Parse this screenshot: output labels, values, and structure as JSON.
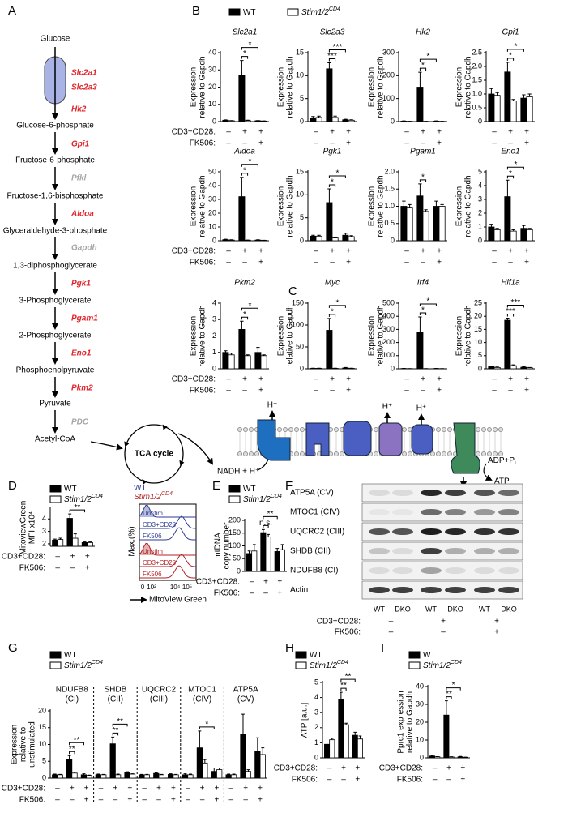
{
  "panels": [
    "A",
    "B",
    "C",
    "D",
    "E",
    "F",
    "G",
    "H",
    "I"
  ],
  "legend": {
    "series": [
      {
        "name": "WT",
        "color": "#000000"
      },
      {
        "name": "Stim1/2",
        "sup": "CD4",
        "color": "#ffffff"
      }
    ]
  },
  "conditions": {
    "rows": [
      {
        "label": "CD3+CD28:",
        "signs": [
          "–",
          "+",
          "+"
        ]
      },
      {
        "label": "FK506:",
        "signs": [
          "–",
          "–",
          "+"
        ]
      }
    ]
  },
  "pathway": {
    "metabolites": [
      "Glucose",
      "Glucose-6-phosphate",
      "Fructose-6-phosphate",
      "Fructose-1,6-bisphosphate",
      "Glyceraldehyde-3-phosphate",
      "1,3-diphosphoglycerate",
      "3-Phosphoglycerate",
      "2-Phosphoglycerate",
      "Phosphoenolpyruvate",
      "Pyruvate",
      "Acetyl-CoA"
    ],
    "enzymes": [
      {
        "name": "Slc2a1",
        "color": "#e0262c"
      },
      {
        "name": "Slc2a3",
        "color": "#e0262c"
      },
      {
        "name": "Hk2",
        "color": "#e0262c"
      },
      {
        "name": "Gpi1",
        "color": "#e0262c"
      },
      {
        "name": "Pfkl",
        "color": "#a6a6a6"
      },
      {
        "name": "Aldoa",
        "color": "#e0262c"
      },
      {
        "name": "Gapdh",
        "color": "#a6a6a6"
      },
      {
        "name": "Pgk1",
        "color": "#e0262c"
      },
      {
        "name": "Pgam1",
        "color": "#e0262c"
      },
      {
        "name": "Eno1",
        "color": "#e0262c"
      },
      {
        "name": "Pkm2",
        "color": "#e0262c"
      },
      {
        "name": "PDC",
        "color": "#a6a6a6"
      }
    ]
  },
  "mito": {
    "tca": "TCA cycle",
    "nadh": "NADH + H⁺",
    "proton": "H⁺",
    "adp": "ADP+P",
    "adp_sub": "i",
    "atp": "ATP"
  },
  "flow": {
    "legend": [
      {
        "name": "WT",
        "color": "#2e3b96"
      },
      {
        "name": "Stim1/2",
        "sup": "CD4",
        "color": "#b32025"
      }
    ],
    "rows": [
      "Unstim",
      "CD3+CD28",
      "FK506"
    ],
    "ylabel": "Max.(%)",
    "xticks": [
      "0",
      "10²",
      "10⁴",
      "10⁵"
    ],
    "xlabel": "MitoView Green"
  },
  "blot": {
    "proteins": [
      "ATP5A (CV)",
      "MTOC1 (CIV)",
      "UQCRC2 (CIII)",
      "SHDB (CII)",
      "NDUFB8 (CI)",
      "Actin"
    ],
    "lanes": [
      "WT",
      "DKO",
      "WT",
      "DKO",
      "WT",
      "DKO"
    ]
  },
  "chart_data": [
    {
      "type": "bar",
      "title": "Slc2a1",
      "ylabel": [
        "Expression",
        "relative to Gapdh"
      ],
      "ylim": [
        0,
        40
      ],
      "yticks": [
        0,
        10,
        20,
        30,
        40
      ],
      "series": [
        {
          "values": [
            0.8,
            27,
            0.5
          ],
          "errors": [
            0.2,
            8.5,
            0.1
          ]
        },
        {
          "values": [
            0.5,
            0.6,
            0.3
          ],
          "errors": [
            0.1,
            0.2,
            0.1
          ]
        }
      ],
      "annotations": [
        "*",
        "*"
      ]
    },
    {
      "type": "bar",
      "title": "Slc2a3",
      "ylabel": [
        "Expression",
        "relative to Gapdh"
      ],
      "ylim": [
        0,
        15
      ],
      "yticks": [
        0,
        5,
        10,
        15
      ],
      "series": [
        {
          "values": [
            0.7,
            11.5,
            0.4
          ],
          "errors": [
            0.4,
            1.3,
            0.1
          ]
        },
        {
          "values": [
            0.9,
            0.9,
            0.3
          ],
          "errors": [
            0.3,
            0.3,
            0.1
          ]
        }
      ],
      "annotations": [
        "***",
        "***"
      ]
    },
    {
      "type": "bar",
      "title": "Hk2",
      "ylabel": [
        "Expression",
        "relative to Gapdh"
      ],
      "ylim": [
        0,
        300
      ],
      "yticks": [
        0,
        100,
        200,
        300
      ],
      "series": [
        {
          "values": [
            2,
            150,
            2
          ],
          "errors": [
            1,
            65,
            1
          ]
        },
        {
          "values": [
            1,
            1,
            1
          ],
          "errors": [
            0.5,
            0.5,
            0.5
          ]
        }
      ],
      "annotations": [
        "*",
        "*"
      ]
    },
    {
      "type": "bar",
      "title": "Gpi1",
      "ylabel": [
        "Expression",
        "relative to Gapdh"
      ],
      "ylim": [
        0,
        2.5
      ],
      "yticks": [
        0,
        0.5,
        {
          "value": 1,
          "label": "1.0"
        },
        1.5,
        {
          "value": 2,
          "label": "2.0"
        },
        2.5
      ],
      "series": [
        {
          "values": [
            1.0,
            1.8,
            0.85
          ],
          "errors": [
            0.2,
            0.35,
            0.12
          ]
        },
        {
          "values": [
            0.95,
            0.75,
            0.9
          ],
          "errors": [
            0.1,
            0.05,
            0.1
          ]
        }
      ],
      "annotations": [
        "*",
        "*"
      ]
    },
    {
      "type": "bar",
      "title": "Aldoa",
      "ylabel": [
        "Expression",
        "relative to Gapdh"
      ],
      "ylim": [
        0,
        50
      ],
      "yticks": [
        0,
        10,
        20,
        30,
        40,
        50
      ],
      "series": [
        {
          "values": [
            0.8,
            32,
            0.5
          ],
          "errors": [
            0.3,
            14,
            0.2
          ]
        },
        {
          "values": [
            0.5,
            0.4,
            0.3
          ],
          "errors": [
            0.2,
            0.1,
            0.1
          ]
        }
      ],
      "annotations": [
        "*",
        "*"
      ]
    },
    {
      "type": "bar",
      "title": "Pgk1",
      "ylabel": [
        "Expression",
        "relative to Gapdh"
      ],
      "ylim": [
        0,
        15
      ],
      "yticks": [
        0,
        5,
        10,
        15
      ],
      "series": [
        {
          "values": [
            1,
            8.3,
            1.2
          ],
          "errors": [
            0.2,
            3,
            0.4
          ]
        },
        {
          "values": [
            1,
            0.6,
            0.9
          ],
          "errors": [
            0.2,
            0.1,
            0.2
          ]
        }
      ],
      "annotations": [
        "*",
        "*"
      ]
    },
    {
      "type": "bar",
      "title": "Pgam1",
      "ylabel": [
        "Expression",
        "relative to Gapdh"
      ],
      "ylim": [
        0,
        2
      ],
      "yticks": [
        0,
        0.5,
        {
          "value": 1,
          "label": "1.0"
        },
        1.5,
        {
          "value": 2,
          "label": "2.0"
        }
      ],
      "series": [
        {
          "values": [
            1.0,
            1.3,
            1.0
          ],
          "errors": [
            0.15,
            0.35,
            0.15
          ]
        },
        {
          "values": [
            0.95,
            0.85,
            1.0
          ],
          "errors": [
            0.1,
            0.05,
            0.05
          ]
        }
      ],
      "annotations": [
        "*"
      ]
    },
    {
      "type": "bar",
      "title": "Eno1",
      "ylabel": [
        "Expression",
        "relative to Gapdh"
      ],
      "ylim": [
        0,
        5
      ],
      "yticks": [
        0,
        1,
        2,
        3,
        4,
        5
      ],
      "series": [
        {
          "values": [
            1,
            3.2,
            0.9
          ],
          "errors": [
            0.2,
            1.2,
            0.2
          ]
        },
        {
          "values": [
            0.8,
            0.7,
            0.8
          ],
          "errors": [
            0.1,
            0.1,
            0.1
          ]
        }
      ],
      "annotations": [
        "*",
        "*"
      ]
    },
    {
      "type": "bar",
      "title": "Pkm2",
      "ylabel": [
        "Expression",
        "relative to Gapdh"
      ],
      "ylim": [
        0,
        4
      ],
      "yticks": [
        0,
        1,
        2,
        3,
        4
      ],
      "series": [
        {
          "values": [
            1,
            2.4,
            1
          ],
          "errors": [
            0.1,
            0.5,
            0.3
          ]
        },
        {
          "values": [
            0.85,
            0.8,
            0.8
          ],
          "errors": [
            0.1,
            0.05,
            0.05
          ]
        }
      ],
      "annotations": [
        "*",
        "*"
      ]
    },
    {
      "type": "bar",
      "title": "Myc",
      "ylabel": [
        "Expression",
        "relative to Gapdh"
      ],
      "ylim": [
        0,
        150
      ],
      "yticks": [
        0,
        50,
        100,
        150
      ],
      "series": [
        {
          "values": [
            1,
            88,
            2
          ],
          "errors": [
            0.5,
            27,
            1
          ]
        },
        {
          "values": [
            1,
            1,
            1
          ],
          "errors": [
            0.5,
            0.5,
            0.5
          ]
        }
      ],
      "annotations": [
        "*",
        "*"
      ]
    },
    {
      "type": "bar",
      "title": "Irf4",
      "ylabel": [
        "Expression",
        "relative to Gapdh"
      ],
      "ylim": [
        0,
        500
      ],
      "yticks": [
        0,
        100,
        200,
        300,
        400,
        500
      ],
      "series": [
        {
          "values": [
            2,
            280,
            2
          ],
          "errors": [
            1,
            115,
            1
          ]
        },
        {
          "values": [
            1,
            1,
            1
          ],
          "errors": [
            0.5,
            0.5,
            0.5
          ]
        }
      ],
      "annotations": [
        "*",
        "*"
      ]
    },
    {
      "type": "bar",
      "title": "Hif1a",
      "ylabel": [
        "Expression",
        "relative to Gapdh"
      ],
      "ylim": [
        0,
        25
      ],
      "yticks": [
        0,
        5,
        10,
        15,
        20,
        25
      ],
      "series": [
        {
          "values": [
            0.8,
            18.5,
            0.6
          ],
          "errors": [
            0.2,
            0.8,
            0.2
          ]
        },
        {
          "values": [
            0.5,
            1.2,
            0.4
          ],
          "errors": [
            0.2,
            0.3,
            0.1
          ]
        }
      ],
      "annotations": [
        "***",
        "***"
      ]
    },
    {
      "type": "bar",
      "ylabel": [
        "MitoviewGreen",
        "MFI x10⁴"
      ],
      "ylim": [
        1.8,
        4.8
      ],
      "yticks": [
        2,
        3,
        4
      ],
      "series": [
        {
          "values": [
            2.3,
            4.05,
            2.1
          ],
          "errors": [
            0.08,
            0.35,
            0.05
          ]
        },
        {
          "values": [
            2.35,
            2.45,
            2.1
          ],
          "errors": [
            0.1,
            0.35,
            0.05
          ]
        }
      ],
      "annotations": [
        "**"
      ]
    },
    {
      "type": "bar",
      "ylabel": [
        "mtDNA",
        "copy number"
      ],
      "ylim": [
        0,
        200
      ],
      "yticks": [
        0,
        50,
        100,
        150,
        200
      ],
      "series": [
        {
          "values": [
            70,
            152,
            78
          ],
          "errors": [
            10,
            12,
            12
          ]
        },
        {
          "values": [
            80,
            135,
            85
          ],
          "errors": [
            25,
            10,
            20
          ]
        }
      ],
      "annotations": [
        "n.s.",
        "**"
      ]
    },
    {
      "type": "bar",
      "ylabel": [
        "Expression",
        "relative to",
        "unstimulated"
      ],
      "ylim": [
        0,
        20
      ],
      "yticks": [
        0,
        5,
        10,
        15,
        20
      ],
      "groups": [
        {
          "title": [
            "NDUFB8",
            "(CI)"
          ],
          "series": [
            {
              "values": [
                1,
                5.5,
                1
              ],
              "errors": [
                0.2,
                1.2,
                0.3
              ]
            },
            {
              "values": [
                1,
                1.5,
                0.8
              ],
              "errors": [
                0.1,
                0.3,
                0.1
              ]
            }
          ],
          "annotations": [
            "**",
            "**"
          ]
        },
        {
          "title": [
            "SHDB",
            "(CII)"
          ],
          "series": [
            {
              "values": [
                1,
                10.2,
                1.6
              ],
              "errors": [
                0.2,
                2,
                0.3
              ]
            },
            {
              "values": [
                1,
                1,
                1.2
              ],
              "errors": [
                0.1,
                0.2,
                0.1
              ]
            }
          ],
          "annotations": [
            "**",
            "**"
          ]
        },
        {
          "title": [
            "UQCRC2",
            "(CIII)"
          ],
          "series": [
            {
              "values": [
                1,
                1.4,
                1.1
              ],
              "errors": [
                0.1,
                0.2,
                0.2
              ]
            },
            {
              "values": [
                1,
                1,
                1
              ],
              "errors": [
                0.1,
                0.1,
                0.1
              ]
            }
          ],
          "annotations": []
        },
        {
          "title": [
            "MTOC1",
            "(CIV)"
          ],
          "series": [
            {
              "values": [
                1,
                9,
                2
              ],
              "errors": [
                0.3,
                5,
                1
              ]
            },
            {
              "values": [
                1,
                4.5,
                2.5
              ],
              "errors": [
                0.2,
                1,
                0.5
              ]
            }
          ],
          "annotations": [
            "*"
          ]
        },
        {
          "title": [
            "ATP5A",
            "(CV)"
          ],
          "series": [
            {
              "values": [
                1,
                13,
                8
              ],
              "errors": [
                0.2,
                6,
                4
              ]
            },
            {
              "values": [
                1,
                2,
                7
              ],
              "errors": [
                0.2,
                0.5,
                2
              ]
            }
          ],
          "annotations": []
        }
      ]
    },
    {
      "type": "bar",
      "ylabel": [
        "ATP [a.u.]"
      ],
      "ylim": [
        0,
        5
      ],
      "yticks": [
        0,
        1,
        2,
        3,
        4,
        5
      ],
      "series": [
        {
          "values": [
            0.9,
            3.9,
            1.5
          ],
          "errors": [
            0.15,
            0.45,
            0.2
          ]
        },
        {
          "values": [
            1.2,
            2.2,
            1.25
          ],
          "errors": [
            0.1,
            0.1,
            0.2
          ]
        }
      ],
      "annotations": [
        "**",
        "**"
      ]
    },
    {
      "type": "bar",
      "ylabel": [
        "Pprc1 expression",
        "relative to Gapdh"
      ],
      "ylim": [
        0,
        40
      ],
      "yticks": [
        0,
        10,
        20,
        30,
        40
      ],
      "series": [
        {
          "values": [
            1,
            24,
            0.6
          ],
          "errors": [
            0.3,
            8,
            0.2
          ]
        },
        {
          "values": [
            0.6,
            0.5,
            0.3
          ],
          "errors": [
            0.1,
            0.1,
            0.1
          ]
        }
      ],
      "annotations": [
        "**",
        "*"
      ]
    }
  ]
}
